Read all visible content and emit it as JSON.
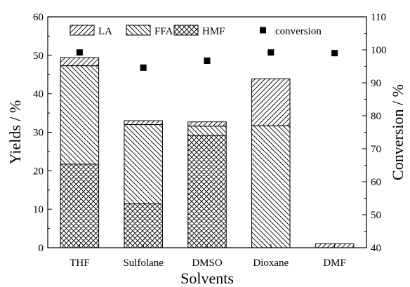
{
  "chart_data": {
    "type": "bar",
    "stacked": true,
    "categories": [
      "THF",
      "Sulfolane",
      "DMSO",
      "Dioxane",
      "DMF"
    ],
    "series": [
      {
        "name": "HMF",
        "hatch": "cross",
        "values": [
          21.7,
          11.4,
          29.2,
          0,
          0
        ]
      },
      {
        "name": "FFA",
        "hatch": "diagonal-down",
        "values": [
          25.6,
          20.6,
          2.4,
          31.7,
          0
        ]
      },
      {
        "name": "LA",
        "hatch": "diagonal-up",
        "values": [
          2.1,
          1.0,
          1.1,
          12.2,
          1.0
        ]
      }
    ],
    "conversion": {
      "name": "conversion",
      "marker": "filled-square",
      "values": [
        99.2,
        94.6,
        96.7,
        99.2,
        99.0
      ]
    },
    "xlabel": "Solvents",
    "ylabel": "Yields / %",
    "y2label": "Conversion / %",
    "ylim": [
      0,
      60
    ],
    "y2lim": [
      40,
      110
    ],
    "yticks": [
      "0",
      "10",
      "20",
      "30",
      "40",
      "50",
      "60"
    ],
    "y2ticks": [
      "40",
      "50",
      "60",
      "70",
      "80",
      "90",
      "100",
      "110"
    ],
    "legend_placement": "top",
    "grid": false,
    "colors": {
      "ink": "#000000",
      "background": "#ffffff"
    }
  }
}
